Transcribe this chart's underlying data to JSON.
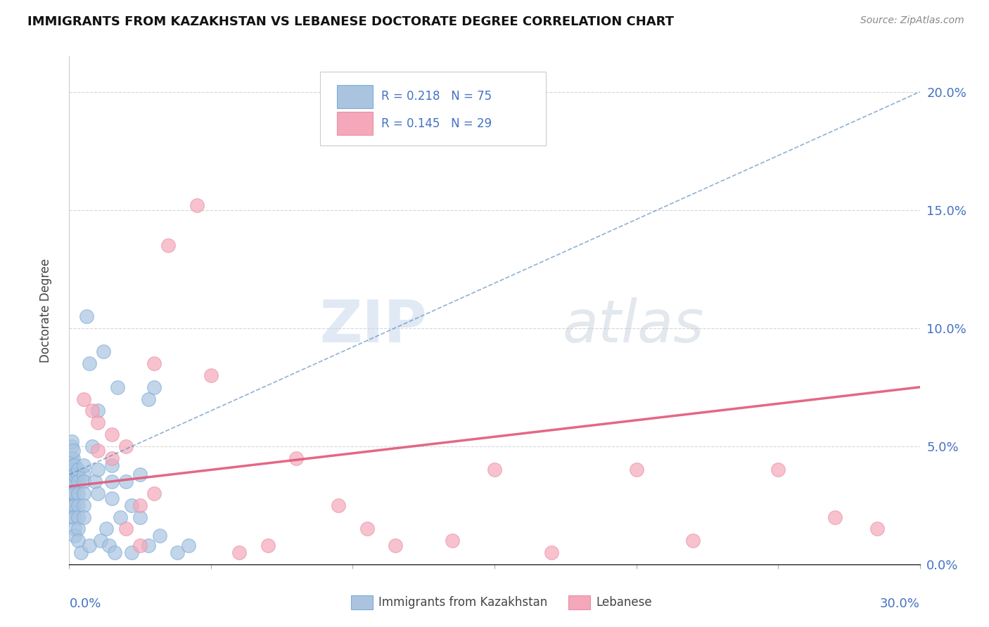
{
  "title": "IMMIGRANTS FROM KAZAKHSTAN VS LEBANESE DOCTORATE DEGREE CORRELATION CHART",
  "source": "Source: ZipAtlas.com",
  "ylabel": "Doctorate Degree",
  "ylabel_right_vals": [
    0.0,
    5.0,
    10.0,
    15.0,
    20.0
  ],
  "xmin": 0.0,
  "xmax": 30.0,
  "ymin": 0.0,
  "ymax": 21.5,
  "legend_r1": "R = 0.218",
  "legend_n1": "N = 75",
  "legend_r2": "R = 0.145",
  "legend_n2": "N = 29",
  "kazakhstan_color": "#aac4e0",
  "kazakhstan_edge": "#7aacda",
  "lebanese_color": "#f4a8ba",
  "lebanese_edge": "#e890a8",
  "kaz_line_color": "#5588bb",
  "leb_line_color": "#e05878",
  "kaz_line_start_y": 3.8,
  "kaz_line_end_y": 20.0,
  "leb_line_start_y": 3.3,
  "leb_line_end_y": 7.5,
  "kaz_x": [
    0.1,
    0.1,
    0.1,
    0.1,
    0.1,
    0.1,
    0.1,
    0.1,
    0.1,
    0.1,
    0.15,
    0.15,
    0.15,
    0.15,
    0.15,
    0.15,
    0.15,
    0.15,
    0.15,
    0.15,
    0.2,
    0.2,
    0.2,
    0.2,
    0.2,
    0.2,
    0.2,
    0.2,
    0.2,
    0.3,
    0.3,
    0.3,
    0.3,
    0.3,
    0.3,
    0.3,
    0.3,
    0.5,
    0.5,
    0.5,
    0.5,
    0.5,
    0.5,
    0.7,
    0.8,
    0.9,
    1.0,
    1.0,
    1.0,
    1.3,
    1.5,
    1.5,
    1.5,
    1.8,
    2.0,
    2.2,
    2.5,
    2.5,
    0.6,
    1.2,
    1.7,
    2.8,
    3.0,
    0.4,
    0.7,
    1.1,
    1.4,
    1.6,
    2.2,
    2.8,
    3.2,
    3.8,
    4.2
  ],
  "kaz_y": [
    3.8,
    4.0,
    4.2,
    4.5,
    5.0,
    5.2,
    3.5,
    3.0,
    2.8,
    2.5,
    3.8,
    4.0,
    4.2,
    4.5,
    4.8,
    3.5,
    3.0,
    2.5,
    2.2,
    2.0,
    3.5,
    4.0,
    4.2,
    3.8,
    3.0,
    2.5,
    2.0,
    1.5,
    1.2,
    3.8,
    4.0,
    3.5,
    3.0,
    2.5,
    2.0,
    1.5,
    1.0,
    3.8,
    4.2,
    3.5,
    3.0,
    2.5,
    2.0,
    8.5,
    5.0,
    3.5,
    6.5,
    4.0,
    3.0,
    1.5,
    4.2,
    3.5,
    2.8,
    2.0,
    3.5,
    2.5,
    3.8,
    2.0,
    10.5,
    9.0,
    7.5,
    7.0,
    7.5,
    0.5,
    0.8,
    1.0,
    0.8,
    0.5,
    0.5,
    0.8,
    1.2,
    0.5,
    0.8
  ],
  "leb_x": [
    0.5,
    0.8,
    1.0,
    1.5,
    1.5,
    2.0,
    2.0,
    2.5,
    2.5,
    3.0,
    3.5,
    4.5,
    5.0,
    7.0,
    8.0,
    10.5,
    11.5,
    13.5,
    15.0,
    17.0,
    20.0,
    22.0,
    25.0,
    27.0,
    28.5,
    6.0,
    9.5,
    3.0,
    1.0
  ],
  "leb_y": [
    7.0,
    6.5,
    6.0,
    5.5,
    4.5,
    5.0,
    1.5,
    2.5,
    0.8,
    8.5,
    13.5,
    15.2,
    8.0,
    0.8,
    4.5,
    1.5,
    0.8,
    1.0,
    4.0,
    0.5,
    4.0,
    1.0,
    4.0,
    2.0,
    1.5,
    0.5,
    2.5,
    3.0,
    4.8
  ]
}
